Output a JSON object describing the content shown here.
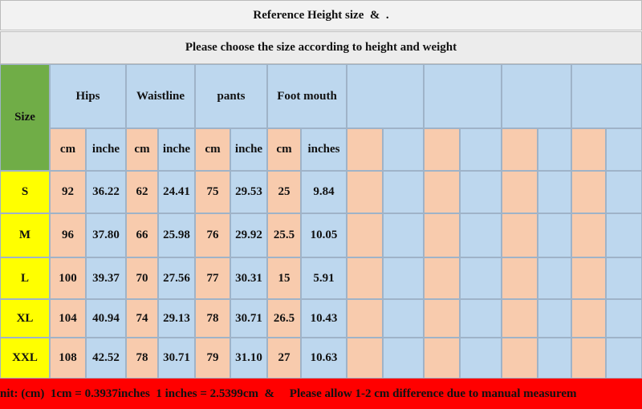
{
  "header": {
    "title": "Reference Height size  &  .",
    "subtitle": "Please choose the size according to height and weight"
  },
  "table": {
    "size_label": "Size",
    "groups": [
      "Hips",
      "Waistline",
      "pants",
      "Foot mouth"
    ],
    "units": [
      "cm",
      "inche",
      "cm",
      "inche",
      "cm",
      "inche",
      "cm",
      "inches"
    ],
    "rows": [
      [
        "S",
        "92",
        "36.22",
        "62",
        "24.41",
        "75",
        "29.53",
        "25",
        "9.84"
      ],
      [
        "M",
        "96",
        "37.80",
        "66",
        "25.98",
        "76",
        "29.92",
        "25.5",
        "10.05"
      ],
      [
        "L",
        "100",
        "39.37",
        "70",
        "27.56",
        "77",
        "30.31",
        "15",
        "5.91"
      ],
      [
        "XL",
        "104",
        "40.94",
        "74",
        "29.13",
        "78",
        "30.71",
        "26.5",
        "10.43"
      ],
      [
        "XXL",
        "108",
        "42.52",
        "78",
        "30.71",
        "79",
        "31.10",
        "27",
        "10.63"
      ]
    ]
  },
  "footer": "nit: (cm)  1cm = 0.3937inches  1 inches = 2.5399cm  &     Please allow 1-2 cm difference due to manual measurem"
}
